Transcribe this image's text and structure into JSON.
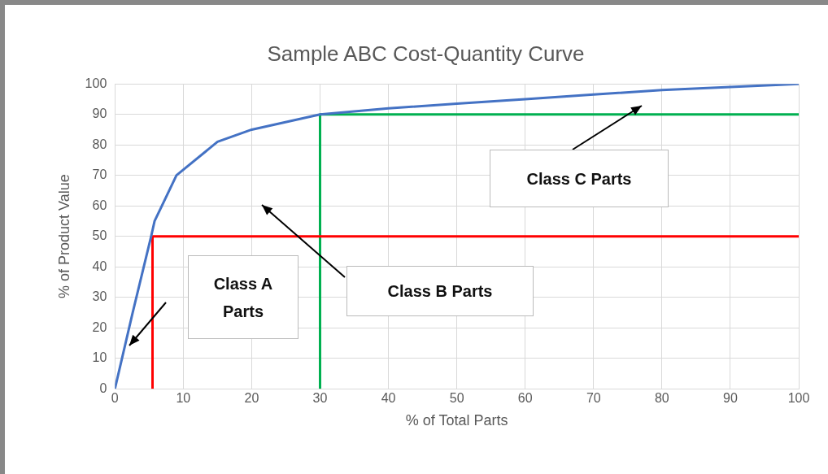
{
  "chart_data": {
    "type": "line",
    "title": "Sample ABC Cost-Quantity Curve",
    "xlabel": "% of Total Parts",
    "ylabel": "% of Product Value",
    "xlim": [
      0,
      100
    ],
    "xticks": [
      0,
      10,
      20,
      30,
      40,
      50,
      60,
      70,
      80,
      90,
      100
    ],
    "ylim": [
      0,
      100
    ],
    "yticks": [
      0,
      10,
      20,
      30,
      40,
      50,
      60,
      70,
      80,
      90,
      100
    ],
    "grid": true,
    "legend": false,
    "marker": "none",
    "line_style": "solid",
    "series": [
      {
        "color": "#4472c4",
        "x": [
          0,
          2.6,
          5.3,
          5.8,
          9,
          15,
          20,
          30,
          40,
          50,
          60,
          70,
          80,
          90,
          100
        ],
        "values": [
          0,
          25,
          50,
          55,
          70,
          81,
          85,
          90,
          92,
          93.5,
          95,
          96.5,
          98,
          99,
          100
        ]
      },
      {
        "color": "#ff0000",
        "x": [
          5.5,
          5.5,
          100
        ],
        "values": [
          0,
          50,
          50
        ]
      },
      {
        "color": "#00b050",
        "x": [
          30,
          30,
          100
        ],
        "values": [
          0,
          90,
          90
        ]
      }
    ],
    "annotations": [
      "Class A Parts",
      "Class B Parts",
      "Class C Parts"
    ]
  }
}
